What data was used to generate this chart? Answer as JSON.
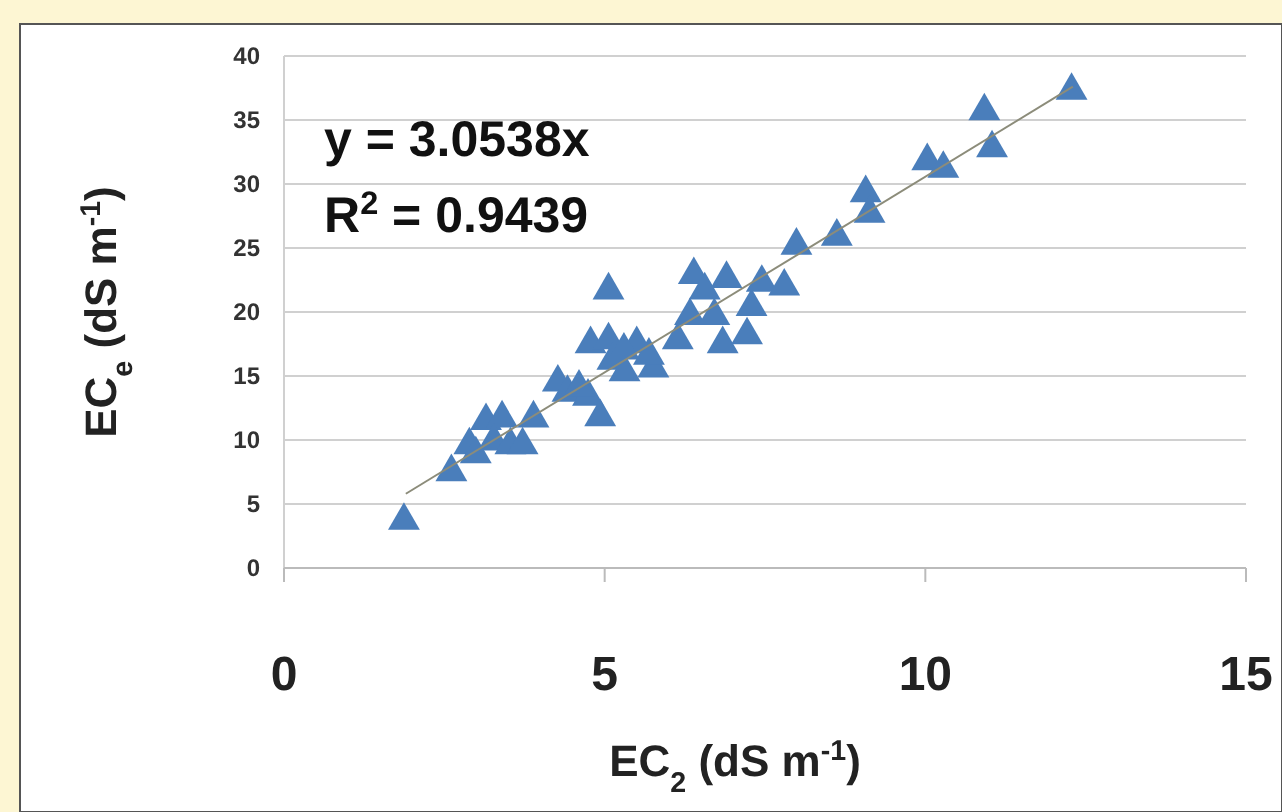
{
  "chart_data": {
    "type": "scatter",
    "xlabel": "EC$_{2}$ (dS m$^{-1}$)",
    "ylabel": "EC$_{e}$ (dS m$^{-1}$)",
    "annotations": [
      "y = 3.0538x",
      "R$^{2}$ = 0.9439"
    ],
    "xlim": [
      0,
      15
    ],
    "xticks": [
      0,
      5,
      10,
      15
    ],
    "ylim": [
      0,
      40
    ],
    "yticks": [
      0,
      5,
      10,
      15,
      20,
      25,
      30,
      35,
      40
    ],
    "grid": "y",
    "marker": "triangle",
    "series": [
      {
        "color": "#4a7ebb",
        "x": [
          1.87,
          2.61,
          2.89,
          2.99,
          3.15,
          3.4,
          3.27,
          3.53,
          3.72,
          3.89,
          4.27,
          4.42,
          4.74,
          4.78,
          4.93,
          5.06,
          5.06,
          5.12,
          5.31,
          5.5,
          5.76,
          5.69,
          6.14,
          6.39,
          6.33,
          6.56,
          6.71,
          6.84,
          6.9,
          7.22,
          7.29,
          7.45,
          7.8,
          7.99,
          8.62,
          9.07,
          9.13,
          10.03,
          10.28,
          10.92,
          11.04,
          12.28,
          4.6,
          5.3
        ],
        "values": [
          3.7,
          7.5,
          9.6,
          8.9,
          11.5,
          11.7,
          9.9,
          9.6,
          9.6,
          11.7,
          14.5,
          13.7,
          13.4,
          17.5,
          11.8,
          21.7,
          17.8,
          16.2,
          15.3,
          17.5,
          15.6,
          16.6,
          17.8,
          22.9,
          19.7,
          21.7,
          19.7,
          17.5,
          22.6,
          18.2,
          20.4,
          22.3,
          22,
          25.2,
          25.9,
          29.3,
          27.7,
          31.8,
          31.2,
          35.7,
          32.8,
          37.3,
          14.1,
          17
        ]
      },
      {
        "type": "line",
        "color": "#8c8c7a",
        "marker": "none",
        "x": [
          1.9,
          12.3
        ],
        "values": [
          5.8,
          37.6
        ]
      }
    ]
  }
}
